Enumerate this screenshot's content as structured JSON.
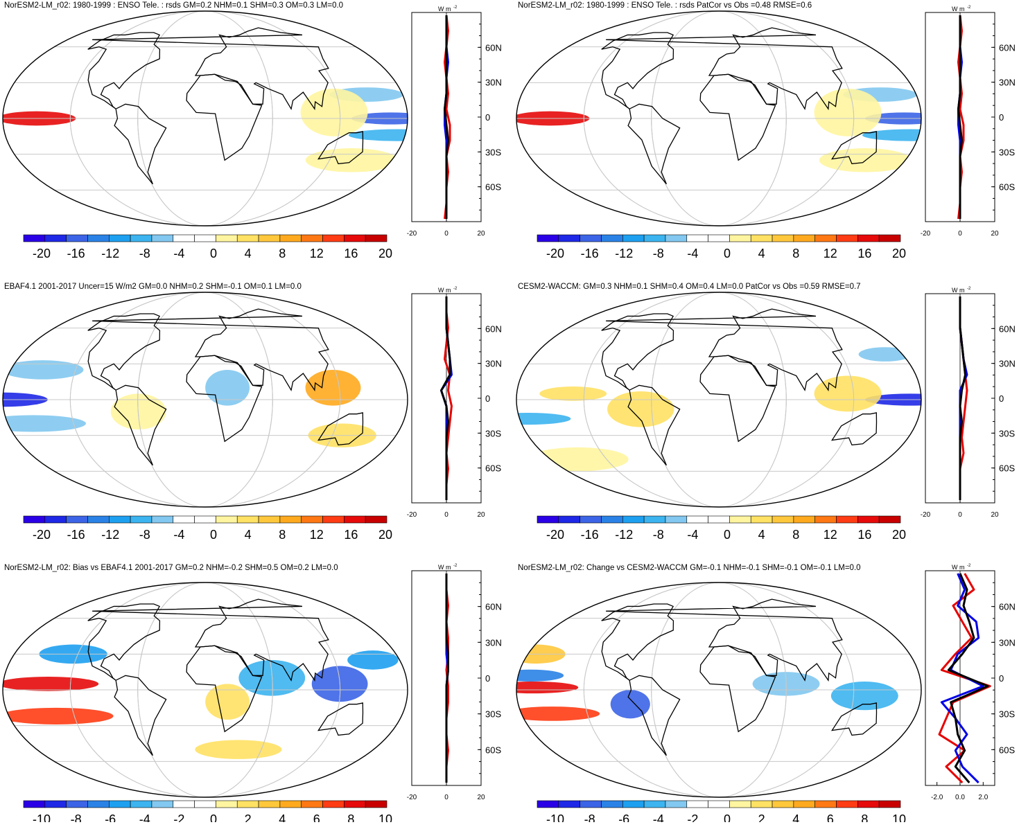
{
  "colors": {
    "scale": [
      "#2a00e6",
      "#1e28e6",
      "#3c64e6",
      "#2a82e6",
      "#1ea0f0",
      "#3cb4f0",
      "#82c8f0",
      "#ffffff",
      "#ffffff",
      "#fff5a0",
      "#ffe164",
      "#ffc83c",
      "#ffaa1e",
      "#ff7814",
      "#ff3c14",
      "#e60a0a",
      "#c80000"
    ],
    "land": "#000000",
    "grid": "#c8c8c8",
    "zonal_a": "#e60000",
    "zonal_b": "#0000e6",
    "zonal_mean": "#000000"
  },
  "zonal_axis": {
    "unit_base": "W m",
    "unit_exp": "-2",
    "lat_labels": [
      "60N",
      "30N",
      "0",
      "30S",
      "60S"
    ]
  },
  "chart_data": [
    {
      "type": "heatmap",
      "title": "NorESM2-LM_r02: 1980-1999 : ENSO Tele. : rsds GM=0.2 NHM=0.1 SHM=0.3 OM=0.3 LM=0.0",
      "colorbar_ticks": [
        "-20",
        "-16",
        "-12",
        "-8",
        "-4",
        "0",
        "4",
        "8",
        "12",
        "16",
        "20"
      ],
      "field": [
        {
          "lon": 210,
          "lat": 0,
          "dlon": 35,
          "dlat": 6,
          "v": 18
        },
        {
          "lon": 165,
          "lat": 0,
          "dlon": 35,
          "dlat": 5,
          "v": -14
        },
        {
          "lon": 175,
          "lat": -14,
          "dlon": 45,
          "dlat": 5,
          "v": -8
        },
        {
          "lon": 150,
          "lat": 20,
          "dlon": 35,
          "dlat": 6,
          "v": -6
        },
        {
          "lon": 115,
          "lat": 5,
          "dlon": 30,
          "dlat": 20,
          "v": 3
        },
        {
          "lon": 150,
          "lat": -35,
          "dlon": 50,
          "dlat": 10,
          "v": 3
        }
      ],
      "zonal_ticks": [
        "-20",
        "0",
        "20"
      ],
      "zonal_range": [
        -20,
        20
      ],
      "zonal_series": [
        {
          "name": "red",
          "values": [
            0,
            1,
            0,
            -1,
            0,
            1,
            0,
            2,
            2,
            0,
            1,
            0,
            0,
            -1
          ]
        },
        {
          "name": "blue",
          "values": [
            0,
            0,
            0,
            1,
            0,
            0,
            -1,
            -1,
            0,
            0,
            0,
            0,
            0,
            0
          ]
        },
        {
          "name": "black",
          "values": [
            0,
            0,
            0,
            0,
            0,
            0,
            -1,
            0,
            1,
            0,
            0,
            0,
            0,
            0
          ]
        }
      ]
    },
    {
      "type": "heatmap",
      "title": "NorESM2-LM_r02: 1980-1999 : ENSO Tele. : rsds PatCor vs Obs =0.48 RMSE=0.6",
      "colorbar_ticks": [
        "-20",
        "-16",
        "-12",
        "-8",
        "-4",
        "0",
        "4",
        "8",
        "12",
        "16",
        "20"
      ],
      "field": [
        {
          "lon": 210,
          "lat": 0,
          "dlon": 35,
          "dlat": 6,
          "v": 18
        },
        {
          "lon": 165,
          "lat": 0,
          "dlon": 35,
          "dlat": 5,
          "v": -14
        },
        {
          "lon": 175,
          "lat": -14,
          "dlon": 45,
          "dlat": 5,
          "v": -8
        },
        {
          "lon": 150,
          "lat": 20,
          "dlon": 35,
          "dlat": 6,
          "v": -6
        },
        {
          "lon": 115,
          "lat": 5,
          "dlon": 30,
          "dlat": 20,
          "v": 3
        },
        {
          "lon": 150,
          "lat": -35,
          "dlon": 50,
          "dlat": 10,
          "v": 3
        }
      ],
      "zonal_ticks": [
        "-20",
        "0",
        "20"
      ],
      "zonal_range": [
        -20,
        20
      ],
      "zonal_series": [
        {
          "name": "red",
          "values": [
            0,
            1,
            0,
            -1,
            0,
            1,
            0,
            2,
            2,
            0,
            1,
            0,
            0,
            -1
          ]
        },
        {
          "name": "blue",
          "values": [
            0,
            0,
            0,
            1,
            0,
            0,
            -1,
            -1,
            0,
            0,
            0,
            0,
            0,
            0
          ]
        },
        {
          "name": "black",
          "values": [
            0,
            0,
            0,
            0,
            0,
            0,
            -1,
            0,
            1,
            0,
            0,
            0,
            0,
            0
          ]
        }
      ]
    },
    {
      "type": "heatmap",
      "title": "EBAF4.1 2001-2017 Uncer=15 W/m2 GM=0.0 NHM=0.2 SHM=-0.1 OM=0.1 LM=0.0",
      "colorbar_ticks": [
        "-20",
        "-16",
        "-12",
        "-8",
        "-4",
        "0",
        "4",
        "8",
        "12",
        "16",
        "20"
      ],
      "field": [
        {
          "lon": 180,
          "lat": 0,
          "dlon": 40,
          "dlat": 6,
          "v": -18
        },
        {
          "lon": 200,
          "lat": -20,
          "dlon": 50,
          "dlat": 7,
          "v": -6
        },
        {
          "lon": 205,
          "lat": 25,
          "dlon": 40,
          "dlat": 8,
          "v": -6
        },
        {
          "lon": 115,
          "lat": 10,
          "dlon": 25,
          "dlat": 15,
          "v": 10
        },
        {
          "lon": 135,
          "lat": -30,
          "dlon": 35,
          "dlat": 10,
          "v": 4
        },
        {
          "lon": 300,
          "lat": -10,
          "dlon": 25,
          "dlat": 15,
          "v": 3
        },
        {
          "lon": 20,
          "lat": 10,
          "dlon": 20,
          "dlat": 15,
          "v": -4
        }
      ],
      "zonal_ticks": [
        "-20",
        "0",
        "20"
      ],
      "zonal_range": [
        -20,
        20
      ],
      "zonal_series": [
        {
          "name": "red",
          "values": [
            0,
            0,
            1,
            0,
            -1,
            2,
            1,
            3,
            2,
            1,
            0,
            1,
            0,
            0
          ]
        },
        {
          "name": "blue",
          "values": [
            0,
            0,
            0,
            1,
            2,
            3,
            -3,
            0,
            0,
            0,
            0,
            0,
            0,
            0
          ]
        },
        {
          "name": "black",
          "values": [
            0,
            0,
            0,
            1,
            2,
            2,
            -3,
            0,
            1,
            0,
            0,
            0,
            0,
            0
          ]
        }
      ]
    },
    {
      "type": "heatmap",
      "title": "CESM2-WACCM: GM=0.3 NHM=0.1 SHM=0.4 OM=0.4 LM=0.0 PatCor vs Obs =0.59 RMSE=0.7",
      "colorbar_ticks": [
        "-20",
        "-16",
        "-12",
        "-8",
        "-4",
        "0",
        "4",
        "8",
        "12",
        "16",
        "20"
      ],
      "field": [
        {
          "lon": 170,
          "lat": 0,
          "dlon": 40,
          "dlat": 5,
          "v": -18
        },
        {
          "lon": 185,
          "lat": -16,
          "dlon": 40,
          "dlat": 5,
          "v": -8
        },
        {
          "lon": 175,
          "lat": 38,
          "dlon": 30,
          "dlat": 6,
          "v": -6
        },
        {
          "lon": 290,
          "lat": -8,
          "dlon": 30,
          "dlat": 15,
          "v": 6
        },
        {
          "lon": 115,
          "lat": 5,
          "dlon": 30,
          "dlat": 15,
          "v": 5
        },
        {
          "lon": 230,
          "lat": 5,
          "dlon": 30,
          "dlat": 6,
          "v": 4
        },
        {
          "lon": 190,
          "lat": -50,
          "dlon": 70,
          "dlat": 10,
          "v": 3
        }
      ],
      "zonal_ticks": [
        "-20",
        "0",
        "20"
      ],
      "zonal_range": [
        -20,
        20
      ],
      "zonal_series": [
        {
          "name": "red",
          "values": [
            0,
            0,
            0,
            1,
            2,
            3,
            4,
            3,
            2,
            1,
            2,
            0,
            0,
            0
          ]
        },
        {
          "name": "blue",
          "values": [
            0,
            0,
            0,
            1,
            2,
            4,
            0,
            0,
            0,
            0,
            0,
            0,
            0,
            0
          ]
        },
        {
          "name": "black",
          "values": [
            0,
            0,
            0,
            1,
            2,
            3,
            1,
            0,
            1,
            0,
            0,
            0,
            0,
            0
          ]
        }
      ]
    },
    {
      "type": "heatmap",
      "title": "NorESM2-LM_r02: Bias vs EBAF4.1 2001-2017 GM=0.2 NHM=-0.2 SHM=0.5 OM=0.2 LM=0.0",
      "colorbar_ticks": [
        "-10",
        "-8",
        "-6",
        "-4",
        "-2",
        "0",
        "2",
        "4",
        "6",
        "8",
        "10"
      ],
      "field": [
        {
          "lon": 220,
          "lat": 5,
          "dlon": 45,
          "dlat": 6,
          "v": 9
        },
        {
          "lon": 220,
          "lat": -22,
          "dlon": 55,
          "dlat": 7,
          "v": 8
        },
        {
          "lon": 120,
          "lat": 5,
          "dlon": 25,
          "dlat": 15,
          "v": -8
        },
        {
          "lon": 230,
          "lat": 30,
          "dlon": 35,
          "dlat": 8,
          "v": -5
        },
        {
          "lon": 160,
          "lat": 25,
          "dlon": 25,
          "dlat": 8,
          "v": -5
        },
        {
          "lon": 60,
          "lat": 10,
          "dlon": 30,
          "dlat": 15,
          "v": -4
        },
        {
          "lon": 20,
          "lat": -10,
          "dlon": 20,
          "dlat": 15,
          "v": 2
        },
        {
          "lon": 40,
          "lat": -50,
          "dlon": 60,
          "dlat": 8,
          "v": 2
        }
      ],
      "zonal_ticks": [
        "-20",
        "0",
        "20"
      ],
      "zonal_range": [
        -20,
        20
      ],
      "zonal_series": [
        {
          "name": "red",
          "values": [
            0,
            0,
            1,
            0,
            1,
            1,
            0,
            1,
            1,
            0,
            0,
            1,
            0,
            0
          ]
        },
        {
          "name": "blue",
          "values": [
            0,
            0,
            0,
            0,
            0,
            0,
            1,
            0,
            0,
            0,
            0,
            0,
            0,
            0
          ]
        },
        {
          "name": "black",
          "values": [
            0,
            0,
            0,
            0,
            0,
            1,
            1,
            0,
            0,
            0,
            0,
            0,
            0,
            0
          ]
        }
      ]
    },
    {
      "type": "heatmap",
      "title": "NorESM2-LM_r02: Change vs CESM2-WACCM GM=-0.1 NHM=-0.1 SHM=-0.1 OM=-0.1 LM=0.0",
      "colorbar_ticks": [
        "-10",
        "-8",
        "-6",
        "-4",
        "-2",
        "0",
        "2",
        "4",
        "6",
        "8",
        "10"
      ],
      "field": [
        {
          "lon": 195,
          "lat": 2,
          "dlon": 40,
          "dlat": 5,
          "v": 9
        },
        {
          "lon": 205,
          "lat": -20,
          "dlon": 45,
          "dlat": 6,
          "v": 8
        },
        {
          "lon": 190,
          "lat": 12,
          "dlon": 30,
          "dlat": 5,
          "v": -6
        },
        {
          "lon": 280,
          "lat": -12,
          "dlon": 18,
          "dlat": 12,
          "v": -8
        },
        {
          "lon": 130,
          "lat": -5,
          "dlon": 30,
          "dlat": 12,
          "v": -4
        },
        {
          "lon": 180,
          "lat": 30,
          "dlon": 30,
          "dlat": 8,
          "v": 4
        },
        {
          "lon": 60,
          "lat": 5,
          "dlon": 30,
          "dlat": 10,
          "v": -3
        }
      ],
      "zonal_ticks": [
        "-2.0",
        "0.0",
        "2.0"
      ],
      "zonal_range": [
        -3,
        3
      ],
      "zonal_series": [
        {
          "name": "red",
          "values": [
            0.4,
            1.2,
            -0.6,
            0.2,
            1.0,
            -0.4,
            -1.6,
            2.6,
            -0.6,
            -1.2,
            -1.8,
            0.4,
            -1.2,
            0.2
          ]
        },
        {
          "name": "blue",
          "values": [
            -0.2,
            0.4,
            -0.2,
            1.4,
            1.6,
            -0.2,
            -0.8,
            2.0,
            -1.6,
            -0.4,
            0.6,
            -0.4,
            0.2,
            1.6
          ]
        },
        {
          "name": "black",
          "values": [
            0.0,
            0.6,
            0.3,
            0.8,
            1.2,
            0.2,
            -1.0,
            2.4,
            -0.8,
            -0.4,
            -0.2,
            0.4,
            -0.4,
            0.8
          ]
        }
      ]
    }
  ]
}
